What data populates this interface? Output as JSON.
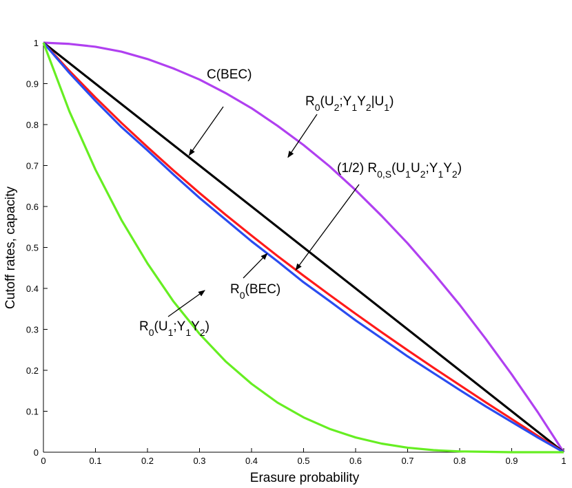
{
  "chart_data": {
    "type": "line",
    "title": "",
    "xlabel": "Erasure probability",
    "ylabel": "Cutoff rates, capacity",
    "xlim": [
      0,
      1
    ],
    "ylim": [
      0,
      1
    ],
    "x_ticks": [
      "0",
      "0.1",
      "0.2",
      "0.3",
      "0.4",
      "0.5",
      "0.6",
      "0.7",
      "0.8",
      "0.9",
      "1"
    ],
    "y_ticks": [
      "0",
      "0.1",
      "0.2",
      "0.3",
      "0.4",
      "0.5",
      "0.6",
      "0.7",
      "0.8",
      "0.9",
      "1"
    ],
    "x": [
      0,
      0.05,
      0.1,
      0.15,
      0.2,
      0.25,
      0.3,
      0.35,
      0.4,
      0.45,
      0.5,
      0.55,
      0.6,
      0.65,
      0.7,
      0.75,
      0.8,
      0.85,
      0.9,
      0.95,
      1
    ],
    "series": [
      {
        "name": "R0(U2;Y1Y2|U1)",
        "color": "#b040f0",
        "values": [
          1.0,
          0.997,
          0.99,
          0.978,
          0.96,
          0.937,
          0.91,
          0.877,
          0.84,
          0.797,
          0.75,
          0.698,
          0.64,
          0.577,
          0.51,
          0.437,
          0.36,
          0.277,
          0.19,
          0.098,
          0.0
        ]
      },
      {
        "name": "C(BEC)",
        "color": "#000000",
        "values": [
          1.0,
          0.95,
          0.9,
          0.85,
          0.8,
          0.75,
          0.7,
          0.65,
          0.6,
          0.55,
          0.5,
          0.45,
          0.4,
          0.35,
          0.3,
          0.25,
          0.2,
          0.15,
          0.1,
          0.05,
          0.0
        ]
      },
      {
        "name": "(1/2) R0,S(U1U2;Y1Y2)",
        "color": "#ff1a1a",
        "values": [
          1.0,
          0.931,
          0.866,
          0.804,
          0.745,
          0.688,
          0.633,
          0.58,
          0.529,
          0.479,
          0.431,
          0.384,
          0.338,
          0.293,
          0.249,
          0.206,
          0.164,
          0.122,
          0.081,
          0.04,
          0.0
        ]
      },
      {
        "name": "R0(BEC)",
        "color": "#2a4cf0",
        "values": [
          1.0,
          0.926,
          0.858,
          0.794,
          0.737,
          0.678,
          0.621,
          0.568,
          0.515,
          0.466,
          0.415,
          0.369,
          0.322,
          0.278,
          0.234,
          0.193,
          0.152,
          0.112,
          0.074,
          0.036,
          0.0
        ]
      },
      {
        "name": "R0(U1;Y1Y2)",
        "color": "#66ee22",
        "values": [
          1.0,
          0.832,
          0.69,
          0.567,
          0.461,
          0.368,
          0.289,
          0.222,
          0.167,
          0.121,
          0.085,
          0.057,
          0.036,
          0.021,
          0.011,
          0.005,
          0.002,
          0.001,
          0.0,
          0.0,
          0.0
        ]
      }
    ],
    "annotations": [
      {
        "series": "C(BEC)",
        "text": "C(BEC)",
        "point": [
          0.28,
          0.725
        ]
      },
      {
        "series": "R0(U2;Y1Y2|U1)",
        "base": "R",
        "sub": "0",
        "body": "(U",
        "body_sub": "2",
        "rest": ";Y",
        "rest_sub": "1",
        "rest2": "Y",
        "rest2_sub": "2",
        "tail": "|U",
        "tail_sub": "1",
        "end": ")",
        "point": [
          0.47,
          0.72
        ]
      },
      {
        "series": "(1/2) R0,S(U1U2;Y1Y2)",
        "point": [
          0.485,
          0.445
        ]
      },
      {
        "series": "R0(BEC)",
        "point": [
          0.43,
          0.485
        ]
      },
      {
        "series": "R0(U1;Y1Y2)",
        "point": [
          0.31,
          0.395
        ]
      }
    ],
    "grid": false,
    "legend": "none"
  }
}
